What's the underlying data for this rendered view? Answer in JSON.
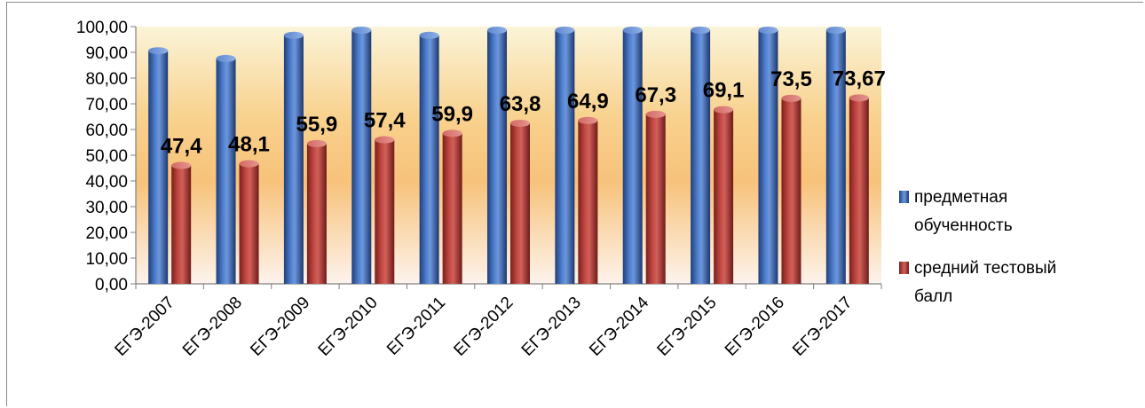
{
  "chart_data": {
    "type": "bar",
    "title": "",
    "xlabel": "",
    "ylabel": "",
    "ylim": [
      0,
      100
    ],
    "y_ticks": [
      "0,00",
      "10,00",
      "20,00",
      "30,00",
      "40,00",
      "50,00",
      "60,00",
      "70,00",
      "80,00",
      "90,00",
      "100,00"
    ],
    "categories": [
      "ЕГЭ-2007",
      "ЕГЭ-2008",
      "ЕГЭ-2009",
      "ЕГЭ-2010",
      "ЕГЭ-2011",
      "ЕГЭ-2012",
      "ЕГЭ-2013",
      "ЕГЭ-2014",
      "ЕГЭ-2015",
      "ЕГЭ-2016",
      "ЕГЭ-2017"
    ],
    "series": [
      {
        "name": "предметная обученность",
        "color": "#3a64b0",
        "values": [
          92,
          89,
          98,
          100,
          98,
          100,
          100,
          100,
          100,
          100,
          100
        ]
      },
      {
        "name": "средний тестовый балл",
        "color": "#b33b36",
        "values": [
          47.4,
          48.1,
          55.9,
          57.4,
          59.9,
          63.8,
          64.9,
          67.3,
          69.1,
          73.5,
          73.67
        ],
        "labels": [
          "47,4",
          "48,1",
          "55,9",
          "57,4",
          "59,9",
          "63,8",
          "64,9",
          "67,3",
          "69,1",
          "73,5",
          "73,67"
        ]
      }
    ],
    "legend": {
      "position": "right",
      "entries": [
        {
          "lines": [
            "предметная",
            "обученность"
          ]
        },
        {
          "lines": [
            "средний тестовый",
            "балл"
          ]
        }
      ]
    },
    "grid": false
  }
}
